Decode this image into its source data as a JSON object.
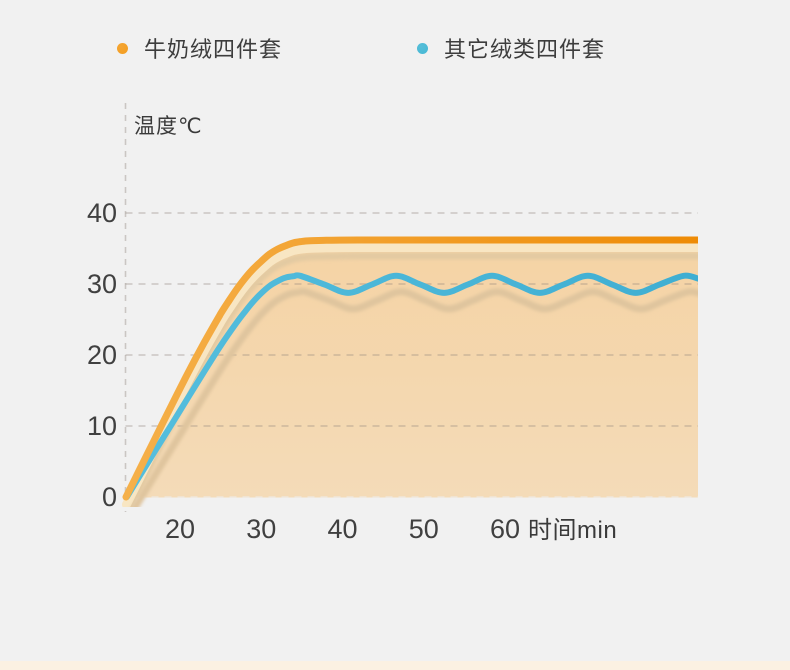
{
  "chart_data": {
    "type": "line",
    "title": "温度℃",
    "x_axis_title": "时间min",
    "x_ticks": [
      20,
      30,
      40,
      50,
      60
    ],
    "y_ticks": [
      0,
      10,
      20,
      30,
      40
    ],
    "x_range": [
      13.3,
      83.8
    ],
    "y_range": [
      0,
      43
    ],
    "grid": "dashed-horizontal",
    "legend_position": "top",
    "background_color": "#F1F1F1",
    "area_fill": {
      "under_series": "牛奶绒四件套",
      "gradient_top": "#F5D3A4",
      "gradient_bottom": "#F4DBB8"
    },
    "shadow_color_orange": "#E3CAA2",
    "shadow_color_blue": "#DFC59E",
    "highlight_band_color": "#F8E6C3",
    "gridline_color": "#8C8178",
    "zero_line_color": "#EFE9DF",
    "series": [
      {
        "name": "牛奶绒四件套",
        "color": "#F49D1F",
        "line_gradient": [
          "#F5B04A",
          "#EE8B05"
        ],
        "behavior": "rises from 0 then plateaus at ~36°C",
        "points": [
          [
            13.35,
            0
          ],
          [
            15,
            3.8
          ],
          [
            17,
            8.4
          ],
          [
            19,
            13.0
          ],
          [
            21,
            17.5
          ],
          [
            23,
            21.8
          ],
          [
            25,
            25.8
          ],
          [
            26,
            27.6
          ],
          [
            27,
            29.3
          ],
          [
            28,
            30.8
          ],
          [
            29,
            32.1
          ],
          [
            30,
            33.2
          ],
          [
            31,
            34.2
          ],
          [
            32,
            34.9
          ],
          [
            33,
            35.4
          ],
          [
            34,
            35.8
          ],
          [
            35,
            36.0
          ],
          [
            36,
            36.1
          ],
          [
            38,
            36.15
          ],
          [
            42,
            36.2
          ],
          [
            48,
            36.2
          ],
          [
            56,
            36.2
          ],
          [
            64,
            36.2
          ],
          [
            72,
            36.2
          ],
          [
            78,
            36.2
          ],
          [
            83.8,
            36.2
          ]
        ]
      },
      {
        "name": "其它绒类四件套",
        "color": "#49B6D7",
        "line_gradient": [
          "#55BEDD",
          "#3FAED2"
        ],
        "behavior": "rises from 0 then oscillates between ~28.8°C and ~31.1°C",
        "points": [
          [
            13.45,
            0
          ],
          [
            15,
            2.9
          ],
          [
            17,
            6.6
          ],
          [
            19,
            10.3
          ],
          [
            21,
            14.0
          ],
          [
            23,
            17.7
          ],
          [
            25,
            21.3
          ],
          [
            27,
            24.6
          ],
          [
            28,
            26.1
          ],
          [
            29,
            27.5
          ],
          [
            30,
            28.7
          ],
          [
            31,
            29.7
          ],
          [
            32,
            30.4
          ],
          [
            33,
            30.9
          ],
          [
            34,
            31.1
          ],
          [
            34.8,
            31.15
          ],
          [
            37.75,
            29.95
          ],
          [
            40.7,
            28.75
          ],
          [
            43.65,
            29.95
          ],
          [
            46.6,
            31.15
          ],
          [
            49.55,
            29.95
          ],
          [
            52.5,
            28.75
          ],
          [
            55.45,
            29.95
          ],
          [
            58.4,
            31.15
          ],
          [
            61.35,
            29.95
          ],
          [
            64.3,
            28.75
          ],
          [
            67.25,
            29.95
          ],
          [
            70.2,
            31.15
          ],
          [
            73.15,
            29.95
          ],
          [
            76.1,
            28.75
          ],
          [
            79.05,
            29.95
          ],
          [
            82,
            31.15
          ],
          [
            83.8,
            30.75
          ]
        ]
      }
    ]
  },
  "legend": {
    "items": [
      {
        "label": "牛奶绒四件套",
        "dot_color": "#F49D1F"
      },
      {
        "label": "其它绒类四件套",
        "dot_color": "#45B8D5"
      }
    ]
  },
  "footer": {
    "strip_color": "#FBF1E2"
  }
}
